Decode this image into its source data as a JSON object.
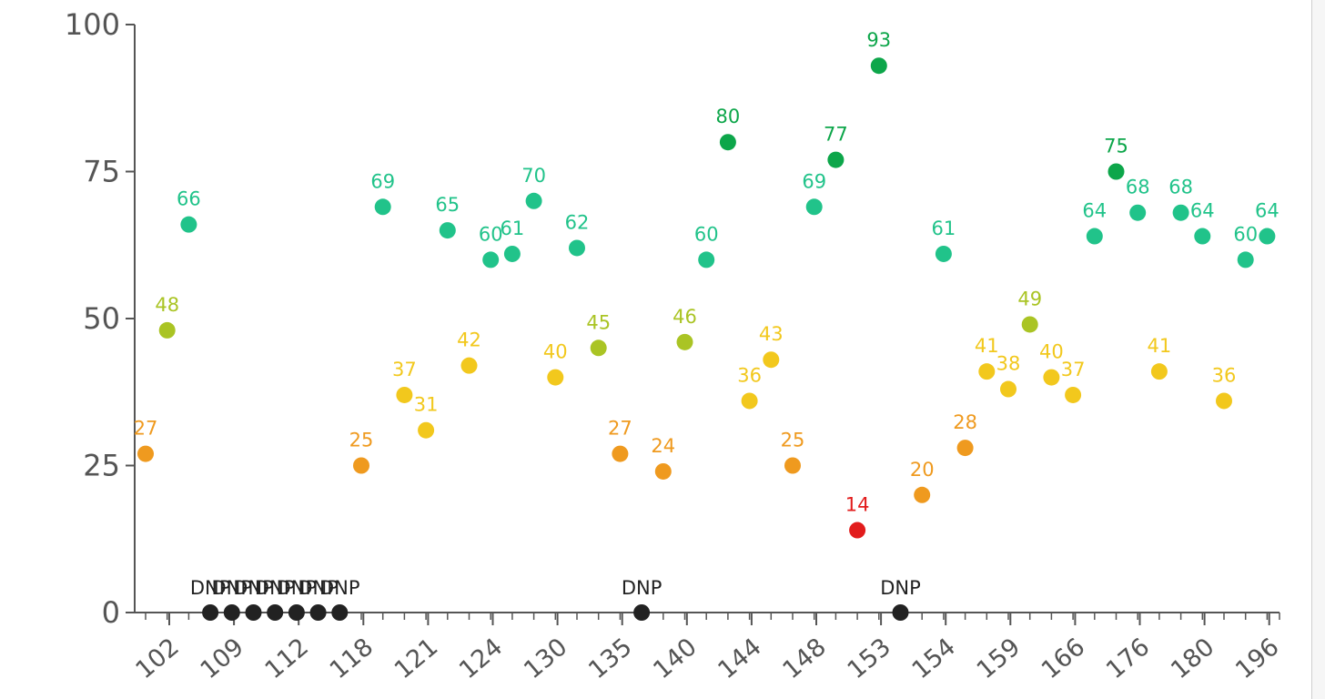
{
  "chart_data": {
    "type": "scatter",
    "title": "",
    "xlabel": "",
    "ylabel": "",
    "ylim": [
      0,
      100
    ],
    "yticks": [
      "0",
      "25",
      "50",
      "75",
      "100"
    ],
    "xtick_labels": [
      "102",
      "109",
      "112",
      "118",
      "121",
      "124",
      "130",
      "135",
      "140",
      "144",
      "148",
      "153",
      "154",
      "159",
      "166",
      "176",
      "180",
      "196"
    ],
    "points": [
      {
        "x": 1,
        "value": 27,
        "label": "27",
        "color": "#ef9a1f"
      },
      {
        "x": 2,
        "value": 48,
        "label": "48",
        "color": "#aac424"
      },
      {
        "x": 3,
        "value": 66,
        "label": "66",
        "color": "#21c38a"
      },
      {
        "x": 4,
        "value": 0,
        "label": "DNP",
        "color": "#222222"
      },
      {
        "x": 5,
        "value": 0,
        "label": "DNP",
        "color": "#222222"
      },
      {
        "x": 6,
        "value": 0,
        "label": "DNP",
        "color": "#222222"
      },
      {
        "x": 7,
        "value": 0,
        "label": "DNP",
        "color": "#222222"
      },
      {
        "x": 8,
        "value": 0,
        "label": "DNP",
        "color": "#222222"
      },
      {
        "x": 9,
        "value": 0,
        "label": "DNP",
        "color": "#222222"
      },
      {
        "x": 10,
        "value": 0,
        "label": "DNP",
        "color": "#222222"
      },
      {
        "x": 11,
        "value": 25,
        "label": "25",
        "color": "#ef9a1f"
      },
      {
        "x": 12,
        "value": 69,
        "label": "69",
        "color": "#21c38a"
      },
      {
        "x": 13,
        "value": 37,
        "label": "37",
        "color": "#f2c81d"
      },
      {
        "x": 14,
        "value": 31,
        "label": "31",
        "color": "#f2c81d"
      },
      {
        "x": 15,
        "value": 65,
        "label": "65",
        "color": "#21c38a"
      },
      {
        "x": 16,
        "value": 42,
        "label": "42",
        "color": "#f2c81d"
      },
      {
        "x": 17,
        "value": 60,
        "label": "60",
        "color": "#21c38a"
      },
      {
        "x": 18,
        "value": 61,
        "label": "61",
        "color": "#21c38a"
      },
      {
        "x": 19,
        "value": 70,
        "label": "70",
        "color": "#21c38a"
      },
      {
        "x": 20,
        "value": 40,
        "label": "40",
        "color": "#f2c81d"
      },
      {
        "x": 21,
        "value": 62,
        "label": "62",
        "color": "#21c38a"
      },
      {
        "x": 22,
        "value": 45,
        "label": "45",
        "color": "#aac424"
      },
      {
        "x": 23,
        "value": 27,
        "label": "27",
        "color": "#ef9a1f"
      },
      {
        "x": 24,
        "value": 0,
        "label": "DNP",
        "color": "#222222"
      },
      {
        "x": 25,
        "value": 24,
        "label": "24",
        "color": "#ef9a1f"
      },
      {
        "x": 26,
        "value": 46,
        "label": "46",
        "color": "#aac424"
      },
      {
        "x": 27,
        "value": 60,
        "label": "60",
        "color": "#21c38a"
      },
      {
        "x": 28,
        "value": 80,
        "label": "80",
        "color": "#0da64a"
      },
      {
        "x": 29,
        "value": 36,
        "label": "36",
        "color": "#f2c81d"
      },
      {
        "x": 30,
        "value": 43,
        "label": "43",
        "color": "#f2c81d"
      },
      {
        "x": 31,
        "value": 25,
        "label": "25",
        "color": "#ef9a1f"
      },
      {
        "x": 32,
        "value": 69,
        "label": "69",
        "color": "#21c38a"
      },
      {
        "x": 33,
        "value": 77,
        "label": "77",
        "color": "#0da64a"
      },
      {
        "x": 34,
        "value": 14,
        "label": "14",
        "color": "#e21c1c"
      },
      {
        "x": 35,
        "value": 93,
        "label": "93",
        "color": "#0da64a"
      },
      {
        "x": 36,
        "value": 0,
        "label": "DNP",
        "color": "#222222"
      },
      {
        "x": 37,
        "value": 20,
        "label": "20",
        "color": "#ef9a1f"
      },
      {
        "x": 38,
        "value": 61,
        "label": "61",
        "color": "#21c38a"
      },
      {
        "x": 39,
        "value": 28,
        "label": "28",
        "color": "#ef9a1f"
      },
      {
        "x": 40,
        "value": 41,
        "label": "41",
        "color": "#f2c81d"
      },
      {
        "x": 41,
        "value": 38,
        "label": "38",
        "color": "#f2c81d"
      },
      {
        "x": 42,
        "value": 49,
        "label": "49",
        "color": "#aac424"
      },
      {
        "x": 43,
        "value": 40,
        "label": "40",
        "color": "#f2c81d"
      },
      {
        "x": 44,
        "value": 37,
        "label": "37",
        "color": "#f2c81d"
      },
      {
        "x": 45,
        "value": 64,
        "label": "64",
        "color": "#21c38a"
      },
      {
        "x": 46,
        "value": 75,
        "label": "75",
        "color": "#0da64a"
      },
      {
        "x": 47,
        "value": 68,
        "label": "68",
        "color": "#21c38a"
      },
      {
        "x": 48,
        "value": 41,
        "label": "41",
        "color": "#f2c81d"
      },
      {
        "x": 49,
        "value": 68,
        "label": "68",
        "color": "#21c38a"
      },
      {
        "x": 50,
        "value": 64,
        "label": "64",
        "color": "#21c38a"
      },
      {
        "x": 51,
        "value": 36,
        "label": "36",
        "color": "#f2c81d"
      },
      {
        "x": 52,
        "value": 60,
        "label": "60",
        "color": "#21c38a"
      },
      {
        "x": 53,
        "value": 64,
        "label": "64",
        "color": "#21c38a"
      }
    ]
  }
}
